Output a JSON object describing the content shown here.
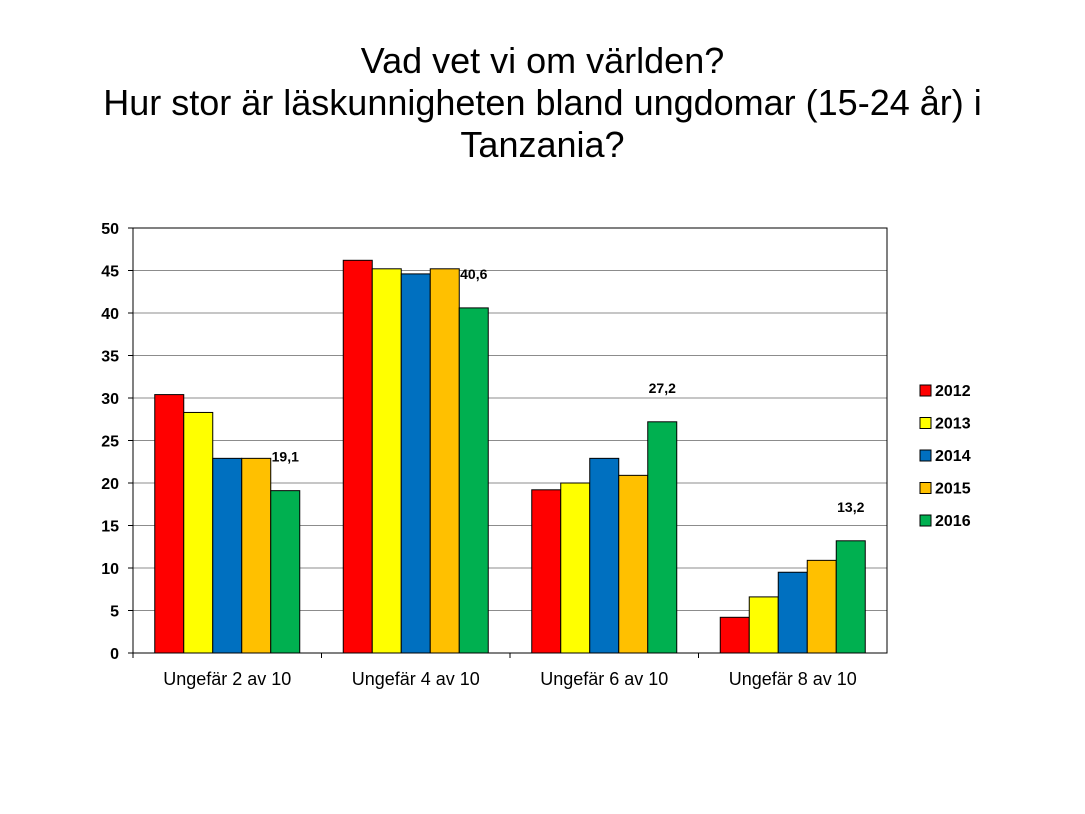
{
  "title_lines": [
    "Vad vet vi om världen?",
    "Hur stor är läskunnigheten bland ungdomar (15-24 år) i",
    "Tanzania?"
  ],
  "chart_data": {
    "type": "bar",
    "title": "Vad vet vi om världen? Hur stor är läskunnigheten bland ungdomar (15-24 år) i Tanzania?",
    "xlabel": "",
    "ylabel": "",
    "categories": [
      "Ungefär 2 av 10",
      "Ungefär 4 av 10",
      "Ungefär 6 av 10",
      "Ungefär 8 av 10"
    ],
    "ylim": [
      0,
      50
    ],
    "yticks": [
      0,
      5,
      10,
      15,
      20,
      25,
      30,
      35,
      40,
      45,
      50
    ],
    "grid": true,
    "legend_position": "right",
    "series": [
      {
        "name": "2012",
        "color": "#ff0000",
        "values": [
          30.4,
          46.2,
          19.2,
          4.2
        ]
      },
      {
        "name": "2013",
        "color": "#ffff00",
        "values": [
          28.3,
          45.2,
          20.0,
          6.6
        ]
      },
      {
        "name": "2014",
        "color": "#0070c0",
        "values": [
          22.9,
          44.6,
          22.9,
          9.5
        ]
      },
      {
        "name": "2015",
        "color": "#ffc000",
        "values": [
          22.9,
          45.2,
          20.9,
          10.9
        ]
      },
      {
        "name": "2016",
        "color": "#00b050",
        "values": [
          19.1,
          40.6,
          27.2,
          13.2
        ]
      }
    ],
    "data_labels": [
      {
        "series": "2016",
        "category_index": 0,
        "text": "19,1"
      },
      {
        "series": "2016",
        "category_index": 1,
        "text": "40,6"
      },
      {
        "series": "2016",
        "category_index": 2,
        "text": "27,2"
      },
      {
        "series": "2016",
        "category_index": 3,
        "text": "13,2"
      }
    ]
  }
}
